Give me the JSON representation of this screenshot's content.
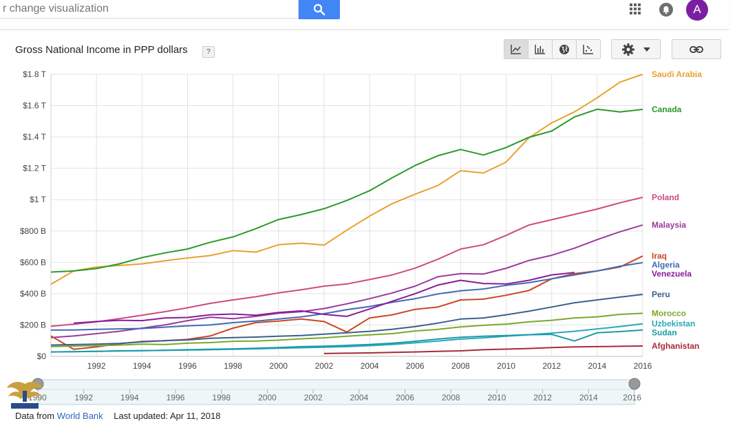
{
  "search": {
    "placeholder": "r change visualization"
  },
  "account": {
    "avatar_letter": "A"
  },
  "title": "Gross National Income in PPP dollars",
  "help_label": "?",
  "footer": {
    "source_prefix": "Data from",
    "source_link": "World Bank",
    "last_updated": "Last updated: Apr 11, 2018"
  },
  "timeline": {
    "labels": [
      "1990",
      "1992",
      "1994",
      "1996",
      "1998",
      "2000",
      "2002",
      "2004",
      "2006",
      "2008",
      "2010",
      "2012",
      "2014",
      "2016"
    ]
  },
  "chart_data": {
    "type": "line",
    "title": "Gross National Income in PPP dollars",
    "xlabel": "",
    "ylabel": "",
    "xlim": [
      1990,
      2016
    ],
    "ylim": [
      0,
      1800000000000
    ],
    "x_ticks": [
      1992,
      1994,
      1996,
      1998,
      2000,
      2002,
      2004,
      2006,
      2008,
      2010,
      2012,
      2014,
      2016
    ],
    "x_tick_labels": [
      "1992",
      "1994",
      "1996",
      "1998",
      "2000",
      "2002",
      "2004",
      "2006",
      "2008",
      "2010",
      "2012",
      "2014",
      "2016"
    ],
    "y_ticks": [
      0,
      200000000000,
      400000000000,
      600000000000,
      800000000000,
      1000000000000,
      1200000000000,
      1400000000000,
      1600000000000,
      1800000000000
    ],
    "y_tick_labels": [
      "$0",
      "$200 B",
      "$400 B",
      "$600 B",
      "$800 B",
      "$1 T",
      "$1.2 T",
      "$1.4 T",
      "$1.6 T",
      "$1.8 T"
    ],
    "grid": true,
    "legend": "right-end labels",
    "series": [
      {
        "name": "Saudi Arabia",
        "color": "#e8a030",
        "x": [
          1990,
          1991,
          1992,
          1993,
          1994,
          1995,
          1996,
          1997,
          1998,
          1999,
          2000,
          2001,
          2002,
          2003,
          2004,
          2005,
          2006,
          2007,
          2008,
          2009,
          2010,
          2011,
          2012,
          2013,
          2014,
          2015,
          2016
        ],
        "values": [
          460000000000.0,
          545000000000.0,
          570000000000.0,
          580000000000.0,
          590000000000.0,
          610000000000.0,
          628000000000.0,
          643000000000.0,
          675000000000.0,
          665000000000.0,
          712000000000.0,
          722000000000.0,
          710000000000.0,
          805000000000.0,
          895000000000.0,
          975000000000.0,
          1035000000000.0,
          1090000000000.0,
          1185000000000.0,
          1170000000000.0,
          1240000000000.0,
          1395000000000.0,
          1490000000000.0,
          1560000000000.0,
          1650000000000.0,
          1750000000000.0,
          1800000000000.0
        ]
      },
      {
        "name": "Canada",
        "color": "#2a9a2a",
        "x": [
          1990,
          1991,
          1992,
          1993,
          1994,
          1995,
          1996,
          1997,
          1998,
          1999,
          2000,
          2001,
          2002,
          2003,
          2004,
          2005,
          2006,
          2007,
          2008,
          2009,
          2010,
          2011,
          2012,
          2013,
          2014,
          2015,
          2016
        ],
        "values": [
          538000000000.0,
          545000000000.0,
          560000000000.0,
          590000000000.0,
          630000000000.0,
          660000000000.0,
          685000000000.0,
          728000000000.0,
          762000000000.0,
          815000000000.0,
          873000000000.0,
          905000000000.0,
          942000000000.0,
          995000000000.0,
          1057000000000.0,
          1140000000000.0,
          1218000000000.0,
          1280000000000.0,
          1320000000000.0,
          1285000000000.0,
          1333000000000.0,
          1398000000000.0,
          1438000000000.0,
          1528000000000.0,
          1577000000000.0,
          1560000000000.0,
          1576000000000.0
        ]
      },
      {
        "name": "Poland",
        "color": "#cc4a80",
        "x": [
          1990,
          1991,
          1992,
          1993,
          1994,
          1995,
          1996,
          1997,
          1998,
          1999,
          2000,
          2001,
          2002,
          2003,
          2004,
          2005,
          2006,
          2007,
          2008,
          2009,
          2010,
          2011,
          2012,
          2013,
          2014,
          2015,
          2016
        ],
        "values": [
          192000000000.0,
          205000000000.0,
          220000000000.0,
          240000000000.0,
          262000000000.0,
          285000000000.0,
          310000000000.0,
          338000000000.0,
          360000000000.0,
          380000000000.0,
          405000000000.0,
          425000000000.0,
          448000000000.0,
          462000000000.0,
          490000000000.0,
          520000000000.0,
          563000000000.0,
          620000000000.0,
          685000000000.0,
          712000000000.0,
          772000000000.0,
          838000000000.0,
          872000000000.0,
          906000000000.0,
          940000000000.0,
          980000000000.0,
          1015000000000.0
        ]
      },
      {
        "name": "Malaysia",
        "color": "#9a3a9a",
        "x": [
          1990,
          1991,
          1992,
          1993,
          1994,
          1995,
          1996,
          1997,
          1998,
          1999,
          2000,
          2001,
          2002,
          2003,
          2004,
          2005,
          2006,
          2007,
          2008,
          2009,
          2010,
          2011,
          2012,
          2013,
          2014,
          2015,
          2016
        ],
        "values": [
          120000000000.0,
          130000000000.0,
          145000000000.0,
          160000000000.0,
          180000000000.0,
          200000000000.0,
          228000000000.0,
          250000000000.0,
          240000000000.0,
          255000000000.0,
          275000000000.0,
          285000000000.0,
          305000000000.0,
          335000000000.0,
          368000000000.0,
          405000000000.0,
          448000000000.0,
          508000000000.0,
          528000000000.0,
          525000000000.0,
          562000000000.0,
          612000000000.0,
          645000000000.0,
          690000000000.0,
          745000000000.0,
          795000000000.0,
          838000000000.0
        ]
      },
      {
        "name": "Iraq",
        "color": "#cc4422",
        "x": [
          1990,
          1991,
          1992,
          1993,
          1994,
          1995,
          1996,
          1997,
          1998,
          1999,
          2000,
          2001,
          2002,
          2003,
          2004,
          2005,
          2006,
          2007,
          2008,
          2009,
          2010,
          2011,
          2012,
          2013,
          2014,
          2015,
          2016
        ],
        "values": [
          130000000000.0,
          45000000000.0,
          60000000000.0,
          80000000000.0,
          95000000000.0,
          100000000000.0,
          108000000000.0,
          130000000000.0,
          180000000000.0,
          215000000000.0,
          225000000000.0,
          238000000000.0,
          222000000000.0,
          155000000000.0,
          245000000000.0,
          265000000000.0,
          300000000000.0,
          315000000000.0,
          360000000000.0,
          365000000000.0,
          390000000000.0,
          420000000000.0,
          495000000000.0,
          528000000000.0,
          545000000000.0,
          570000000000.0,
          640000000000.0
        ]
      },
      {
        "name": "Algeria",
        "color": "#3d6ab5",
        "x": [
          1990,
          1991,
          1992,
          1993,
          1994,
          1995,
          1996,
          1997,
          1998,
          1999,
          2000,
          2001,
          2002,
          2003,
          2004,
          2005,
          2006,
          2007,
          2008,
          2009,
          2010,
          2011,
          2012,
          2013,
          2014,
          2015,
          2016
        ],
        "values": [
          168000000000.0,
          168000000000.0,
          172000000000.0,
          175000000000.0,
          178000000000.0,
          186000000000.0,
          195000000000.0,
          200000000000.0,
          215000000000.0,
          225000000000.0,
          238000000000.0,
          252000000000.0,
          272000000000.0,
          298000000000.0,
          318000000000.0,
          345000000000.0,
          368000000000.0,
          398000000000.0,
          418000000000.0,
          430000000000.0,
          453000000000.0,
          470000000000.0,
          495000000000.0,
          520000000000.0,
          545000000000.0,
          575000000000.0,
          598000000000.0
        ]
      },
      {
        "name": "Venezuela",
        "color": "#8a1a9a",
        "x": [
          1991,
          1992,
          1993,
          1994,
          1995,
          1996,
          1997,
          1998,
          1999,
          2000,
          2001,
          2002,
          2003,
          2004,
          2005,
          2006,
          2007,
          2008,
          2009,
          2010,
          2011,
          2012,
          2013
        ],
        "values": [
          212000000000.0,
          222000000000.0,
          230000000000.0,
          228000000000.0,
          245000000000.0,
          248000000000.0,
          265000000000.0,
          270000000000.0,
          262000000000.0,
          280000000000.0,
          290000000000.0,
          268000000000.0,
          255000000000.0,
          302000000000.0,
          352000000000.0,
          400000000000.0,
          455000000000.0,
          485000000000.0,
          465000000000.0,
          462000000000.0,
          485000000000.0,
          520000000000.0,
          535000000000.0
        ]
      },
      {
        "name": "Peru",
        "color": "#3a5f8a",
        "x": [
          1990,
          1991,
          1992,
          1993,
          1994,
          1995,
          1996,
          1997,
          1998,
          1999,
          2000,
          2001,
          2002,
          2003,
          2004,
          2005,
          2006,
          2007,
          2008,
          2009,
          2010,
          2011,
          2012,
          2013,
          2014,
          2015,
          2016
        ],
        "values": [
          72000000000.0,
          75000000000.0,
          78000000000.0,
          82000000000.0,
          92000000000.0,
          100000000000.0,
          105000000000.0,
          115000000000.0,
          120000000000.0,
          123000000000.0,
          128000000000.0,
          133000000000.0,
          142000000000.0,
          150000000000.0,
          160000000000.0,
          173000000000.0,
          190000000000.0,
          212000000000.0,
          238000000000.0,
          245000000000.0,
          265000000000.0,
          288000000000.0,
          315000000000.0,
          342000000000.0,
          360000000000.0,
          378000000000.0,
          395000000000.0
        ]
      },
      {
        "name": "Morocco",
        "color": "#7aa82a",
        "x": [
          1990,
          1991,
          1992,
          1993,
          1994,
          1995,
          1996,
          1997,
          1998,
          1999,
          2000,
          2001,
          2002,
          2003,
          2004,
          2005,
          2006,
          2007,
          2008,
          2009,
          2010,
          2011,
          2012,
          2013,
          2014,
          2015,
          2016
        ],
        "values": [
          62000000000.0,
          66000000000.0,
          68000000000.0,
          72000000000.0,
          78000000000.0,
          75000000000.0,
          84000000000.0,
          88000000000.0,
          96000000000.0,
          98000000000.0,
          103000000000.0,
          112000000000.0,
          118000000000.0,
          128000000000.0,
          137000000000.0,
          145000000000.0,
          162000000000.0,
          172000000000.0,
          188000000000.0,
          198000000000.0,
          206000000000.0,
          220000000000.0,
          230000000000.0,
          245000000000.0,
          252000000000.0,
          268000000000.0,
          275000000000.0
        ]
      },
      {
        "name": "Uzbekistan",
        "color": "#2aa8b8",
        "x": [
          1990,
          1991,
          1992,
          1993,
          1994,
          1995,
          1996,
          1997,
          1998,
          1999,
          2000,
          2001,
          2002,
          2003,
          2004,
          2005,
          2006,
          2007,
          2008,
          2009,
          2010,
          2011,
          2012,
          2013,
          2014,
          2015,
          2016
        ],
        "values": [
          28000000000.0,
          30000000000.0,
          32000000000.0,
          34000000000.0,
          36000000000.0,
          38000000000.0,
          40000000000.0,
          42000000000.0,
          45000000000.0,
          48000000000.0,
          52000000000.0,
          55000000000.0,
          58000000000.0,
          62000000000.0,
          68000000000.0,
          76000000000.0,
          86000000000.0,
          98000000000.0,
          110000000000.0,
          118000000000.0,
          128000000000.0,
          138000000000.0,
          148000000000.0,
          160000000000.0,
          175000000000.0,
          190000000000.0,
          208000000000.0
        ]
      },
      {
        "name": "Sudan",
        "color": "#1a9aa8",
        "x": [
          1990,
          1991,
          1992,
          1993,
          1994,
          1995,
          1996,
          1997,
          1998,
          1999,
          2000,
          2001,
          2002,
          2003,
          2004,
          2005,
          2006,
          2007,
          2008,
          2009,
          2010,
          2011,
          2012,
          2013,
          2014,
          2015,
          2016
        ],
        "values": [
          28000000000.0,
          30000000000.0,
          32000000000.0,
          35000000000.0,
          36000000000.0,
          38000000000.0,
          42000000000.0,
          45000000000.0,
          48000000000.0,
          52000000000.0,
          56000000000.0,
          62000000000.0,
          65000000000.0,
          70000000000.0,
          76000000000.0,
          84000000000.0,
          96000000000.0,
          110000000000.0,
          122000000000.0,
          128000000000.0,
          133000000000.0,
          138000000000.0,
          140000000000.0,
          98000000000.0,
          150000000000.0,
          158000000000.0,
          168000000000.0
        ]
      },
      {
        "name": "Afghanistan",
        "color": "#a82a3a",
        "x": [
          2002,
          2003,
          2004,
          2005,
          2006,
          2007,
          2008,
          2009,
          2010,
          2011,
          2012,
          2013,
          2014,
          2015,
          2016
        ],
        "values": [
          18000000000.0,
          20000000000.0,
          22000000000.0,
          25000000000.0,
          28000000000.0,
          32000000000.0,
          35000000000.0,
          42000000000.0,
          46000000000.0,
          50000000000.0,
          56000000000.0,
          60000000000.0,
          62000000000.0,
          64000000000.0,
          66000000000.0
        ]
      }
    ],
    "end_labels": [
      {
        "name": "Saudi Arabia",
        "color": "#e8a030"
      },
      {
        "name": "Canada",
        "color": "#2a9a2a"
      },
      {
        "name": "Poland",
        "color": "#cc4a80"
      },
      {
        "name": "Malaysia",
        "color": "#9a3a9a"
      },
      {
        "name": "Iraq",
        "color": "#cc4422"
      },
      {
        "name": "Algeria",
        "color": "#3d6ab5"
      },
      {
        "name": "Venezuela",
        "color": "#8a1a9a"
      },
      {
        "name": "Peru",
        "color": "#3a5f8a"
      },
      {
        "name": "Morocco",
        "color": "#7aa82a"
      },
      {
        "name": "Uzbekistan",
        "color": "#2aa8b8"
      },
      {
        "name": "Sudan",
        "color": "#1a9aa8"
      },
      {
        "name": "Afghanistan",
        "color": "#a82a3a"
      }
    ]
  }
}
